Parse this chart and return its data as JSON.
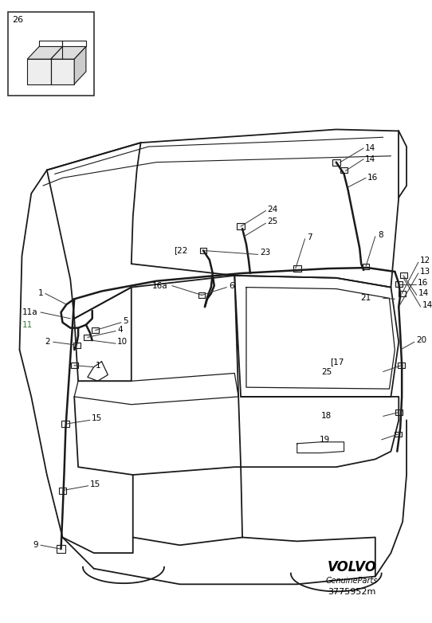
{
  "bg_color": "#ffffff",
  "line_color": "#1a1a1a",
  "car_color": "#1a1a1a",
  "green_color": "#3a7a3a",
  "figsize": [
    5.42,
    7.82
  ],
  "dpi": 100,
  "brand": "VOLVO",
  "brand_sub": "GenuineParts",
  "part_number": "3775952m"
}
